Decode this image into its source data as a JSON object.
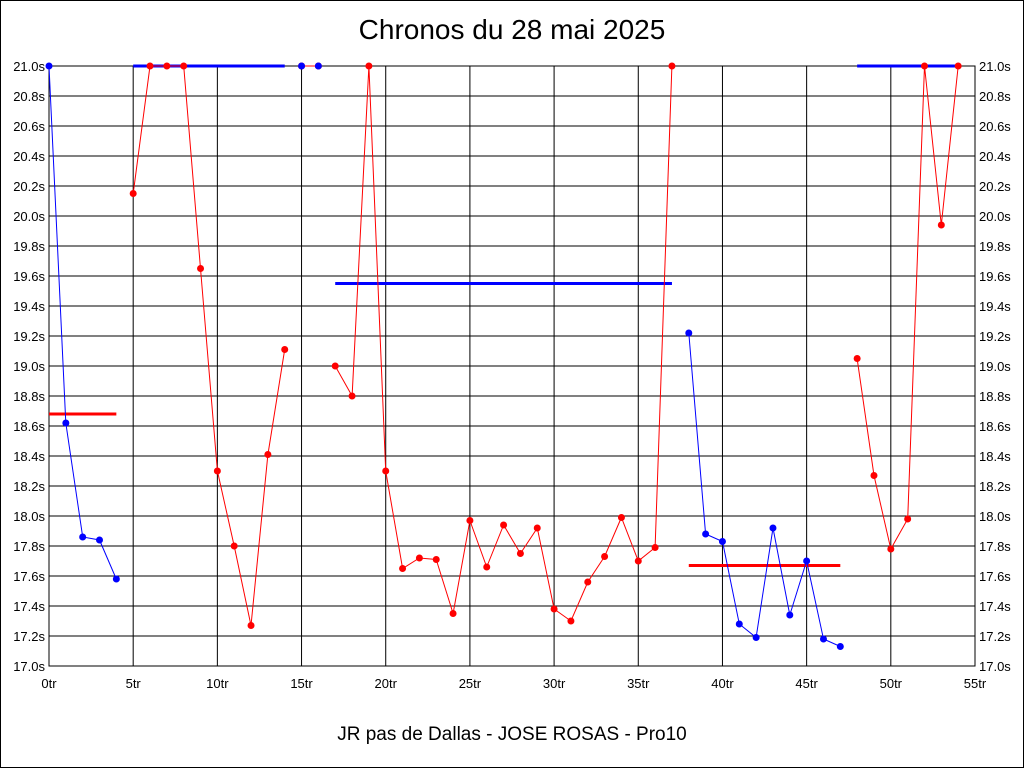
{
  "chart_data": {
    "type": "line",
    "title": "Chronos du 28 mai 2025",
    "subtitle": "JR pas de Dallas - JOSE ROSAS - Pro10",
    "xlim": [
      0,
      55
    ],
    "ylim": [
      17.0,
      21.0
    ],
    "x_ticks": [
      0,
      5,
      10,
      15,
      20,
      25,
      30,
      35,
      40,
      45,
      50,
      55
    ],
    "x_tick_labels": [
      "0tr",
      "5tr",
      "10tr",
      "15tr",
      "20tr",
      "25tr",
      "30tr",
      "35tr",
      "40tr",
      "45tr",
      "50tr",
      "55tr"
    ],
    "y_ticks": [
      17.0,
      17.2,
      17.4,
      17.6,
      17.8,
      18.0,
      18.2,
      18.4,
      18.6,
      18.8,
      19.0,
      19.2,
      19.4,
      19.6,
      19.8,
      20.0,
      20.2,
      20.4,
      20.6,
      20.8,
      21.0
    ],
    "y_tick_labels": [
      "17.0s",
      "17.2s",
      "17.4s",
      "17.6s",
      "17.8s",
      "18.0s",
      "18.2s",
      "18.4s",
      "18.6s",
      "18.8s",
      "19.0s",
      "19.2s",
      "19.4s",
      "19.6s",
      "19.8s",
      "20.0s",
      "20.2s",
      "20.4s",
      "20.6s",
      "20.8s",
      "21.0s"
    ],
    "grid": true,
    "colors": {
      "blue": "#0000ff",
      "red": "#ff0000",
      "grid": "#000000"
    },
    "series": [
      {
        "color": "#0000ff",
        "points": [
          [
            0,
            21.0
          ],
          [
            1,
            18.62
          ],
          [
            2,
            17.86
          ],
          [
            3,
            17.84
          ],
          [
            4,
            17.58
          ]
        ]
      },
      {
        "color": "#ff0000",
        "points": [
          [
            5,
            20.15
          ],
          [
            6,
            21.0
          ],
          [
            7,
            21.0
          ],
          [
            8,
            21.0
          ],
          [
            9,
            19.65
          ],
          [
            10,
            18.3
          ],
          [
            11,
            17.8
          ],
          [
            12,
            17.27
          ],
          [
            13,
            18.41
          ],
          [
            14,
            19.11
          ]
        ]
      },
      {
        "color": "#ff0000",
        "points": [
          [
            15,
            21.0
          ],
          [
            16,
            21.0
          ]
        ]
      },
      {
        "color": "#ff0000",
        "points": [
          [
            17,
            19.0
          ],
          [
            18,
            18.8
          ],
          [
            19,
            21.0
          ],
          [
            20,
            18.3
          ],
          [
            21,
            17.65
          ],
          [
            22,
            17.72
          ],
          [
            23,
            17.71
          ],
          [
            24,
            17.35
          ],
          [
            25,
            17.97
          ],
          [
            26,
            17.66
          ],
          [
            27,
            17.94
          ],
          [
            28,
            17.75
          ],
          [
            29,
            17.92
          ],
          [
            30,
            17.38
          ],
          [
            31,
            17.3
          ],
          [
            32,
            17.56
          ],
          [
            33,
            17.73
          ],
          [
            34,
            17.99
          ],
          [
            35,
            17.7
          ],
          [
            36,
            17.79
          ],
          [
            37,
            21.0
          ]
        ]
      },
      {
        "color": "#0000ff",
        "points": [
          [
            38,
            19.22
          ],
          [
            39,
            17.88
          ],
          [
            40,
            17.83
          ],
          [
            41,
            17.28
          ],
          [
            42,
            17.19
          ],
          [
            43,
            17.92
          ],
          [
            44,
            17.34
          ],
          [
            45,
            17.7
          ],
          [
            46,
            17.18
          ],
          [
            47,
            17.13
          ]
        ]
      },
      {
        "color": "#ff0000",
        "points": [
          [
            48,
            19.05
          ],
          [
            49,
            18.27
          ],
          [
            50,
            17.78
          ],
          [
            51,
            17.98
          ],
          [
            52,
            21.0
          ],
          [
            53,
            19.94
          ],
          [
            54,
            21.0
          ]
        ]
      }
    ],
    "marker_overrides": [
      {
        "x": 15,
        "y": 21.0,
        "color": "#0000ff"
      },
      {
        "x": 16,
        "y": 21.0,
        "color": "#0000ff"
      }
    ],
    "average_lines": [
      {
        "x": [
          0,
          4
        ],
        "y": 18.68,
        "color": "#ff0000"
      },
      {
        "x": [
          5,
          14
        ],
        "y": 21.0,
        "color": "#0000ff"
      },
      {
        "x": [
          17,
          37
        ],
        "y": 19.55,
        "color": "#0000ff"
      },
      {
        "x": [
          38,
          47
        ],
        "y": 17.67,
        "color": "#ff0000"
      },
      {
        "x": [
          48,
          54
        ],
        "y": 21.0,
        "color": "#0000ff"
      }
    ]
  }
}
